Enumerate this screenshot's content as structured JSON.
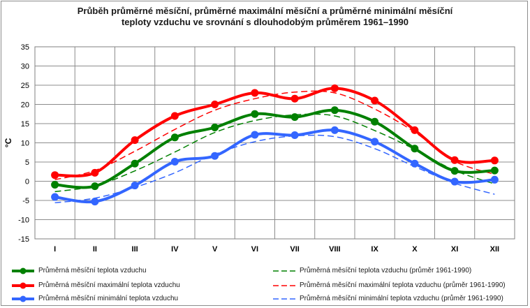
{
  "title_line1": "Průběh průměrné měsíční, průměrné maximální měsíční a průměrné minimální měsíční",
  "title_line2": "teploty vzduchu ve srovnání s dlouhodobým průměrem 1961–1990",
  "chart_data": {
    "type": "line",
    "ylabel": "°C",
    "ylim": [
      -15,
      35
    ],
    "y_ticks": [
      35,
      30,
      25,
      20,
      15,
      10,
      5,
      0,
      -5,
      -10,
      -15
    ],
    "grid": true,
    "legend_position": "bottom",
    "categories": [
      "I",
      "II",
      "III",
      "IV",
      "V",
      "VI",
      "VII",
      "VIII",
      "IX",
      "X",
      "XI",
      "XII"
    ],
    "series": [
      {
        "name": "Průměrná měsíční teplota vzduchu",
        "color": "#008000",
        "style": "solid",
        "marker": true,
        "values": [
          -0.9,
          -1.3,
          4.6,
          11.4,
          14.0,
          17.5,
          16.7,
          18.5,
          15.5,
          8.5,
          2.7,
          2.8
        ]
      },
      {
        "name": "Průměrná měsíční maximální teplota vzduchu",
        "color": "#ff0000",
        "style": "solid",
        "marker": true,
        "values": [
          1.6,
          2.2,
          10.7,
          17.0,
          20.0,
          23.0,
          21.5,
          24.2,
          21.0,
          13.3,
          5.5,
          5.4
        ]
      },
      {
        "name": "Průměrná měsíční minimální teplota vzduchu",
        "color": "#3366ff",
        "style": "solid",
        "marker": true,
        "values": [
          -4.1,
          -5.3,
          -1.1,
          5.1,
          6.6,
          12.1,
          12.0,
          13.3,
          10.3,
          4.6,
          -0.1,
          0.4
        ]
      },
      {
        "name": "Průměrná měsíční teplota vzduchu (průměr 1961-1990)",
        "color": "#008000",
        "style": "dashed",
        "marker": false,
        "values": [
          -2.7,
          -1.2,
          2.7,
          7.6,
          12.7,
          15.8,
          17.3,
          17.0,
          13.2,
          8.3,
          2.8,
          -0.7
        ]
      },
      {
        "name": "Průměrná měsíční maximální teplota vzduchu (průměr 1961-1990)",
        "color": "#ff0000",
        "style": "dashed",
        "marker": false,
        "values": [
          0.4,
          2.8,
          7.8,
          13.5,
          18.5,
          21.5,
          23.2,
          23.0,
          18.8,
          12.8,
          5.2,
          1.8
        ]
      },
      {
        "name": "Průměrná měsíční minimální teplota vzduchu (průměr 1961-1990)",
        "color": "#3366ff",
        "style": "dashed",
        "marker": false,
        "values": [
          -5.6,
          -4.4,
          -1.6,
          2.2,
          7.0,
          10.3,
          11.8,
          11.6,
          8.5,
          3.8,
          -0.5,
          -3.4
        ]
      }
    ]
  }
}
